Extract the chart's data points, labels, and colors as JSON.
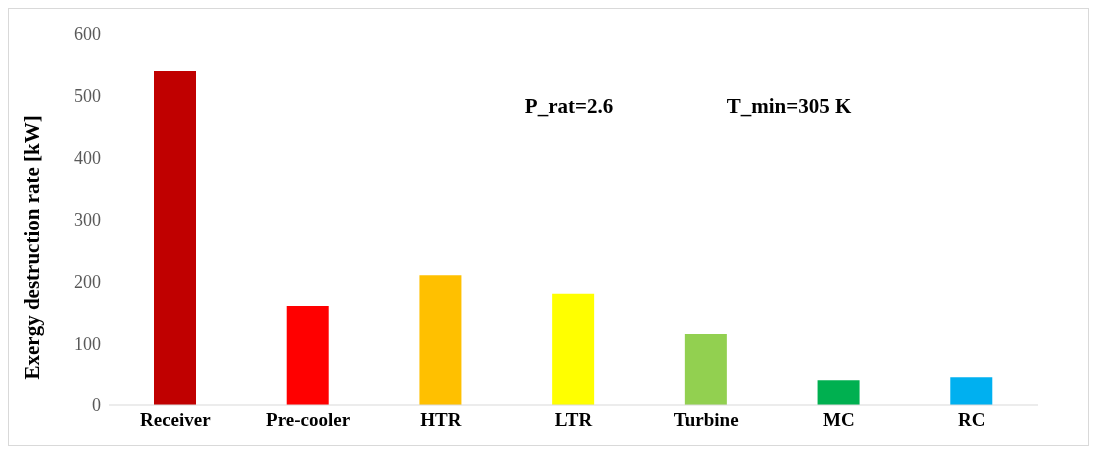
{
  "chart_data": {
    "type": "bar",
    "ylabel": "Exergy destruction rate [kW]",
    "categories": [
      "Receiver",
      "Pre-cooler",
      "HTR",
      "LTR",
      "Turbine",
      "MC",
      "RC"
    ],
    "values": [
      540,
      160,
      210,
      180,
      115,
      40,
      45
    ],
    "colors": [
      "#c00000",
      "#ff0000",
      "#ffc000",
      "#ffff00",
      "#92d050",
      "#00b050",
      "#00b0f0"
    ],
    "ylim": [
      0,
      600
    ],
    "yticks": [
      0,
      100,
      200,
      300,
      400,
      500,
      600
    ],
    "grid": false,
    "annotations": [
      "P_rat=2.6",
      "T_min=305 K"
    ]
  }
}
